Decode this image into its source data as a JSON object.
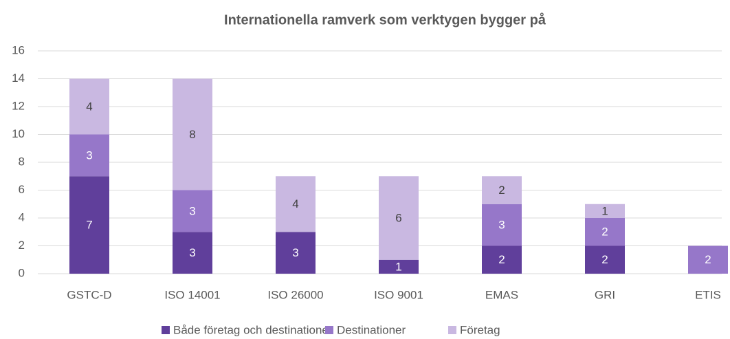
{
  "chart_data": {
    "type": "stacked_bar",
    "title": "Internationella ramverk som verktygen bygger på",
    "categories": [
      "GSTC-D",
      "ISO 14001",
      "ISO 26000",
      "ISO 9001",
      "EMAS",
      "GRI",
      "ETIS"
    ],
    "series": [
      {
        "name": "Både företag och destinationer",
        "color": "#603f9b",
        "values": [
          7,
          3,
          3,
          1,
          2,
          2,
          null
        ]
      },
      {
        "name": "Destinationer",
        "color": "#9677c9",
        "values": [
          3,
          3,
          null,
          null,
          3,
          2,
          2
        ]
      },
      {
        "name": "Företag",
        "color": "#c9b8e1",
        "values": [
          4,
          8,
          4,
          6,
          2,
          1,
          null
        ]
      }
    ],
    "ylim": [
      0,
      16
    ],
    "yticks": [
      0,
      2,
      4,
      6,
      8,
      10,
      12,
      14,
      16
    ],
    "grid": true,
    "legend": "bottom"
  }
}
